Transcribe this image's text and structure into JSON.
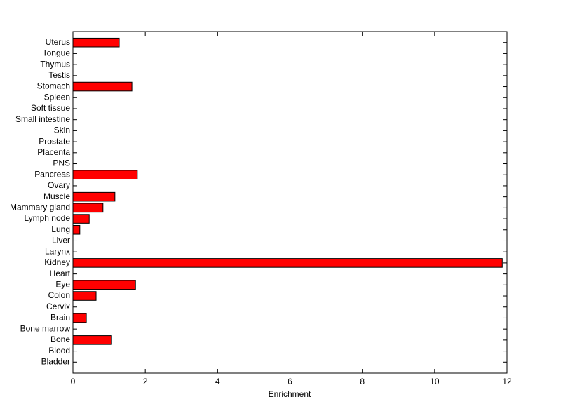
{
  "chart_data": {
    "type": "barh",
    "xlabel": "Enrichment",
    "categories": [
      "Bladder",
      "Blood",
      "Bone",
      "Bone marrow",
      "Brain",
      "Cervix",
      "Colon",
      "Eye",
      "Heart",
      "Kidney",
      "Larynx",
      "Liver",
      "Lung",
      "Lymph node",
      "Mammary gland",
      "Muscle",
      "Ovary",
      "Pancreas",
      "PNS",
      "Placenta",
      "Prostate",
      "Skin",
      "Small intestine",
      "Soft tissue",
      "Spleen",
      "Stomach",
      "Testis",
      "Thymus",
      "Tongue",
      "Uterus"
    ],
    "values": [
      0,
      0,
      1.07,
      0,
      0.37,
      0,
      0.64,
      1.73,
      0,
      11.87,
      0,
      0,
      0.19,
      0.45,
      0.83,
      1.16,
      0,
      1.78,
      0,
      0,
      0,
      0,
      0,
      0,
      0,
      1.63,
      0,
      0,
      0,
      1.28
    ],
    "color": "#ff0000",
    "xlim": [
      0,
      12
    ],
    "xticks": [
      0,
      2,
      4,
      6,
      8,
      10,
      12
    ],
    "grid": false
  }
}
